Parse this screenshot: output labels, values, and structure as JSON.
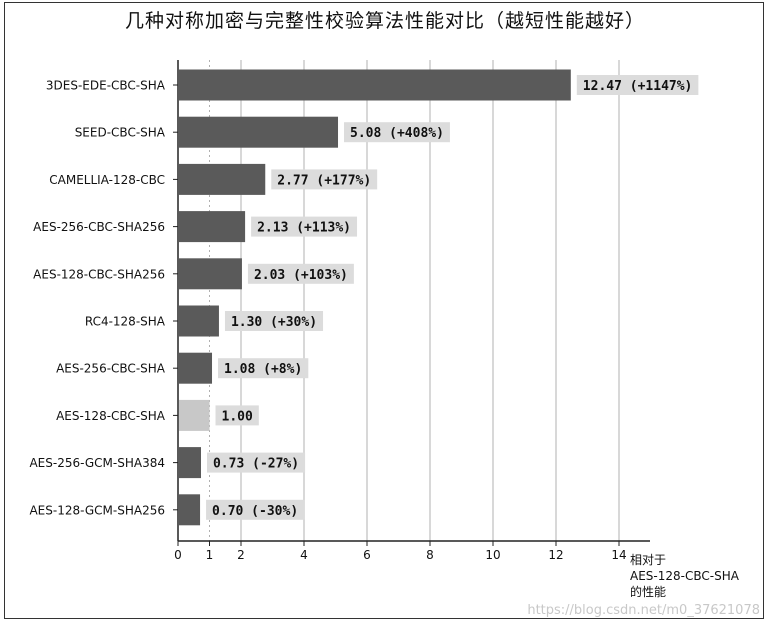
{
  "chart_data": {
    "type": "bar",
    "orientation": "horizontal",
    "title": "几种对称加密与完整性校验算法性能对比（越短性能越好）",
    "xlabel_lines": [
      "相对于",
      "AES-128-CBC-SHA",
      "的性能"
    ],
    "categories": [
      "3DES-EDE-CBC-SHA",
      "SEED-CBC-SHA",
      "CAMELLIA-128-CBC",
      "AES-256-CBC-SHA256",
      "AES-128-CBC-SHA256",
      "RC4-128-SHA",
      "AES-256-CBC-SHA",
      "AES-128-CBC-SHA",
      "AES-256-GCM-SHA384",
      "AES-128-GCM-SHA256"
    ],
    "values": [
      12.47,
      5.08,
      2.77,
      2.13,
      2.03,
      1.3,
      1.08,
      1.0,
      0.73,
      0.7
    ],
    "data_labels": [
      "12.47 (+1147%)",
      "5.08 (+408%)",
      "2.77 (+177%)",
      "2.13 (+113%)",
      "2.03 (+103%)",
      "1.30 (+30%)",
      "1.08 (+8%)",
      "1.00",
      "0.73 (-27%)",
      "0.70 (-30%)"
    ],
    "baseline_category": "AES-128-CBC-SHA",
    "xlim": [
      0,
      15
    ],
    "xticks": [
      0,
      1,
      2,
      4,
      6,
      8,
      10,
      12,
      14
    ],
    "grid": true,
    "colors": {
      "bar": "#5a5a5a",
      "baseline_bar": "#c8c8c8",
      "label_box": "#dcdcdc"
    }
  },
  "watermark": "https://blog.csdn.net/m0_37621078"
}
